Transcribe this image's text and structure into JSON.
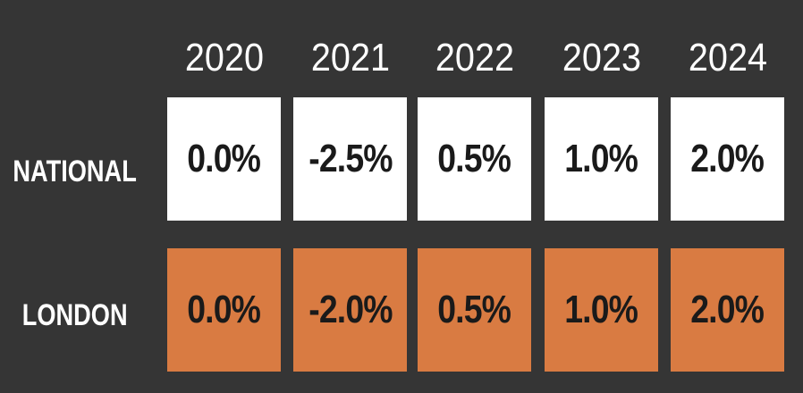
{
  "table": {
    "columns": [
      "2020",
      "2021",
      "2022",
      "2023",
      "2024"
    ],
    "rows": [
      {
        "label": "NATIONAL",
        "cells": [
          "0.0%",
          "-2.5%",
          "0.5%",
          "1.0%",
          "2.0%"
        ]
      },
      {
        "label": "LONDON",
        "cells": [
          "0.0%",
          "-2.0%",
          "0.5%",
          "1.0%",
          "2.0%"
        ]
      }
    ]
  }
}
